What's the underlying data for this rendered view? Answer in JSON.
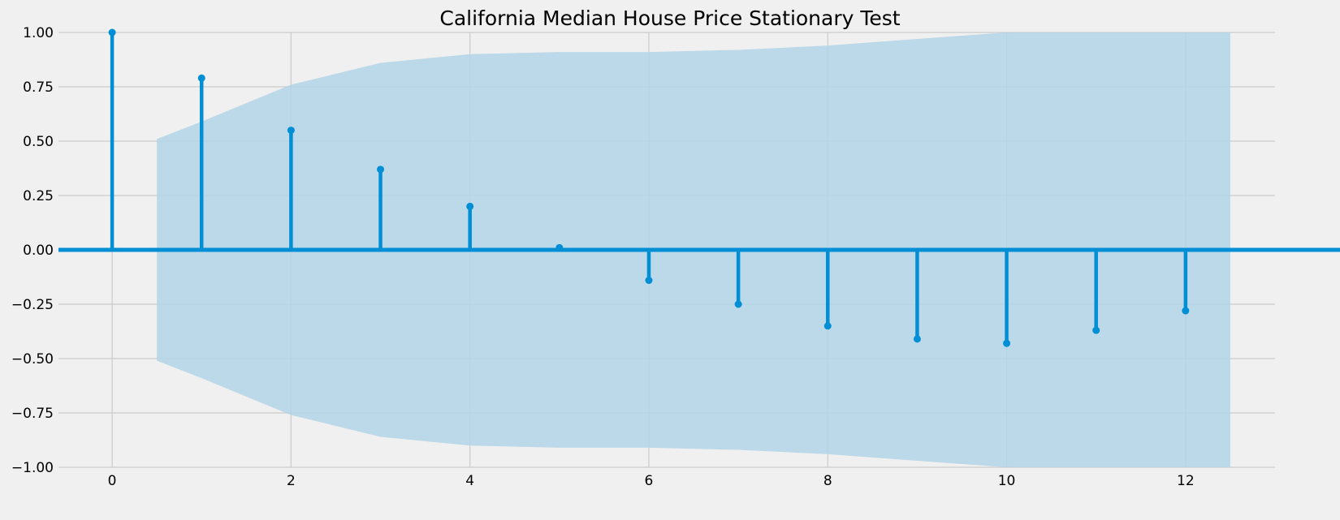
{
  "chart_data": {
    "type": "stem",
    "title": "California Median House Price Stationary Test",
    "xlabel": "",
    "ylabel": "",
    "xlim": [
      -0.6,
      13.0
    ],
    "ylim": [
      -1.0,
      1.0
    ],
    "x_ticks": [
      0,
      2,
      4,
      6,
      8,
      10,
      12
    ],
    "x_tick_labels": [
      "0",
      "2",
      "4",
      "6",
      "8",
      "10",
      "12"
    ],
    "y_ticks": [
      1.0,
      0.75,
      0.5,
      0.25,
      0.0,
      -0.25,
      -0.5,
      -0.75,
      -1.0
    ],
    "y_tick_labels": [
      "1.00",
      "0.75",
      "0.50",
      "0.25",
      "0.00",
      "−0.25",
      "−0.50",
      "−0.75",
      "−1.00"
    ],
    "grid": true,
    "lags": [
      0,
      1,
      2,
      3,
      4,
      5,
      6,
      7,
      8,
      9,
      10,
      11,
      12
    ],
    "values": [
      1.0,
      0.79,
      0.55,
      0.37,
      0.2,
      0.01,
      -0.14,
      -0.25,
      -0.35,
      -0.41,
      -0.43,
      -0.37,
      -0.28
    ],
    "confidence_band": {
      "x": [
        0.5,
        1,
        2,
        3,
        4,
        5,
        6,
        7,
        8,
        9,
        10,
        11,
        12,
        12.5
      ],
      "upper": [
        0.51,
        0.59,
        0.76,
        0.86,
        0.9,
        0.91,
        0.91,
        0.92,
        0.94,
        0.97,
        1.0,
        1.0,
        1.0,
        1.0
      ],
      "lower": [
        -0.51,
        -0.59,
        -0.76,
        -0.86,
        -0.9,
        -0.91,
        -0.91,
        -0.92,
        -0.94,
        -0.97,
        -1.0,
        -1.0,
        -1.0,
        -1.0
      ]
    },
    "colors": {
      "stem": "#008fd5",
      "band": "#b3d5e8",
      "grid": "#cbcbcb",
      "background": "#f0f0f0"
    }
  }
}
